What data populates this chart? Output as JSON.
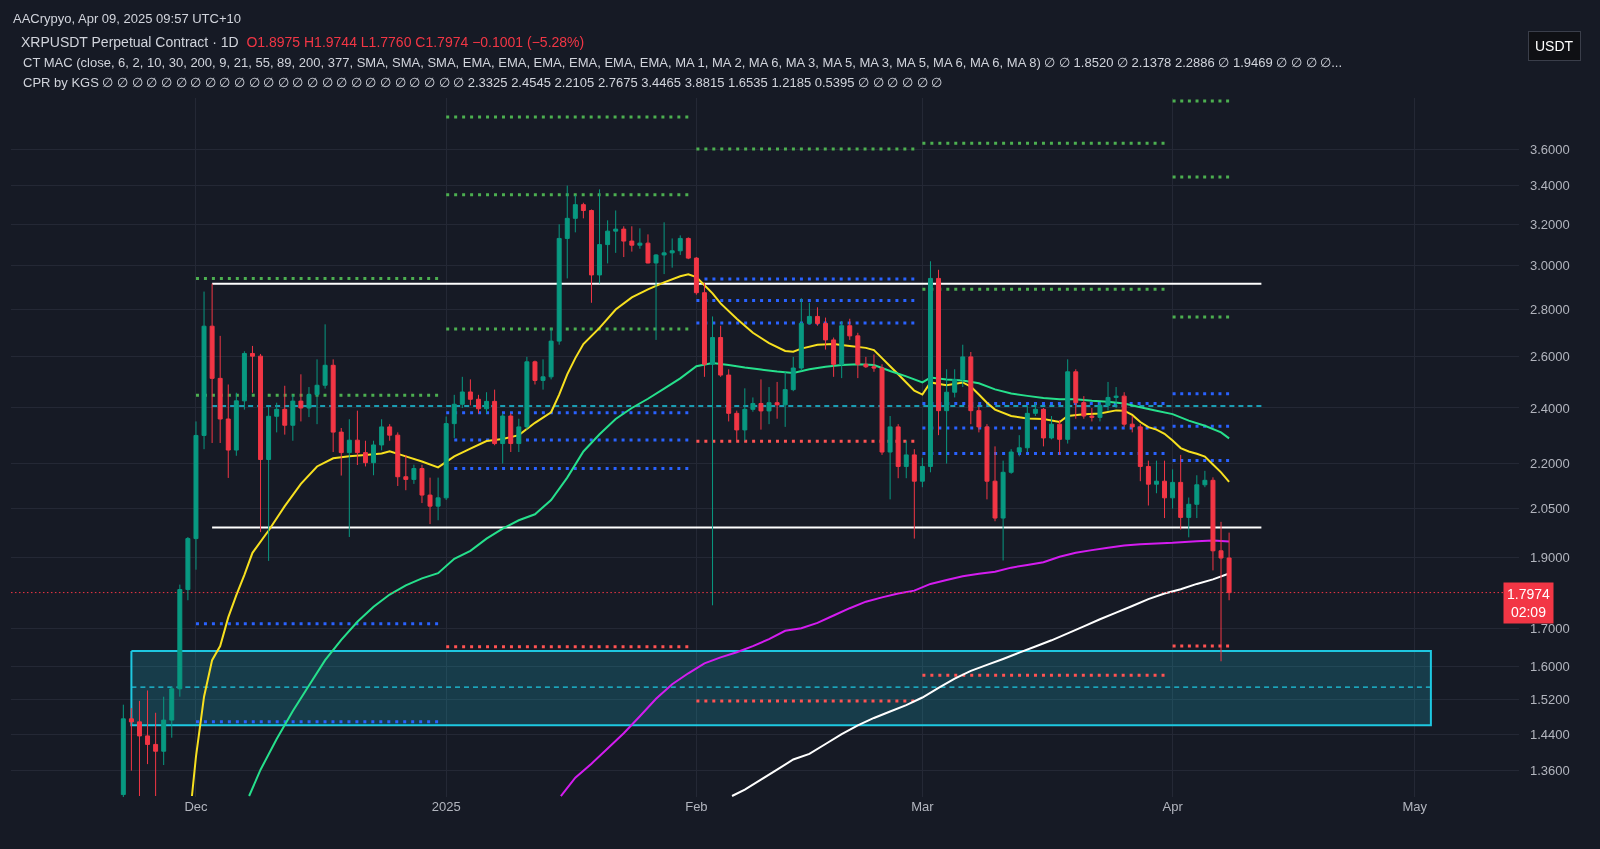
{
  "chart_data": {
    "type": "candlestick",
    "title": "XRPUSDT Perpetual Contract · 1D",
    "subtitle": "O1.8975 H1.9744 L1.7760 C1.7974 −0.1001 (−5.28%)",
    "annotations": [
      "AACrypyo, Apr 09, 2025 09:57 UTC+10",
      "CT MAC (close, 6, 2, 10, 30, 200, 9, 21, 55, 89, 200, 377, SMA, SMA, SMA, EMA, EMA, EMA, EMA, EMA, EMA, MA 1, MA 2, MA 6, MA 3, MA 5, MA 3, MA 5, MA 6, MA 6, MA 8) ∅ ∅ 1.8520 ∅ 2.1378 2.2886 ∅ 1.9469 ∅ ∅ ∅ ∅...",
      "CPR by KGS ∅ ∅ ∅ ∅ ∅ ∅ ∅ ∅ ∅ ∅ ∅ ∅ ∅ ∅ ∅ ∅ ∅ ∅ ∅ ∅ ∅ ∅ ∅ ∅ ∅ 2.3325 2.4545 2.2105 2.7675 3.4465 3.8815 1.6535 1.2185 0.5395 ∅ ∅ ∅ ∅ ∅ ∅",
      "USDT"
    ],
    "x": [
      "2024-11-22",
      "2024-11-23",
      "2024-11-24",
      "2024-11-25",
      "2024-11-26",
      "2024-11-27",
      "2024-11-28",
      "2024-11-29",
      "2024-11-30",
      "2024-12-01",
      "2024-12-02",
      "2024-12-03",
      "2024-12-04",
      "2024-12-05",
      "2024-12-06",
      "2024-12-07",
      "2024-12-08",
      "2024-12-09",
      "2024-12-10",
      "2024-12-11",
      "2024-12-12",
      "2024-12-13",
      "2024-12-14",
      "2024-12-15",
      "2024-12-16",
      "2024-12-17",
      "2024-12-18",
      "2024-12-19",
      "2024-12-20",
      "2024-12-21",
      "2024-12-22",
      "2024-12-23",
      "2024-12-24",
      "2024-12-25",
      "2024-12-26",
      "2024-12-27",
      "2024-12-28",
      "2024-12-29",
      "2024-12-30",
      "2024-12-31",
      "2025-01-01",
      "2025-01-02",
      "2025-01-03",
      "2025-01-04",
      "2025-01-05",
      "2025-01-06",
      "2025-01-07",
      "2025-01-08",
      "2025-01-09",
      "2025-01-10",
      "2025-01-11",
      "2025-01-12",
      "2025-01-13",
      "2025-01-14",
      "2025-01-15",
      "2025-01-16",
      "2025-01-17",
      "2025-01-18",
      "2025-01-19",
      "2025-01-20",
      "2025-01-21",
      "2025-01-22",
      "2025-01-23",
      "2025-01-24",
      "2025-01-25",
      "2025-01-26",
      "2025-01-27",
      "2025-01-28",
      "2025-01-29",
      "2025-01-30",
      "2025-01-31",
      "2025-02-01",
      "2025-02-02",
      "2025-02-03",
      "2025-02-04",
      "2025-02-05",
      "2025-02-06",
      "2025-02-07",
      "2025-02-08",
      "2025-02-09",
      "2025-02-10",
      "2025-02-11",
      "2025-02-12",
      "2025-02-13",
      "2025-02-14",
      "2025-02-15",
      "2025-02-16",
      "2025-02-17",
      "2025-02-18",
      "2025-02-19",
      "2025-02-20",
      "2025-02-21",
      "2025-02-22",
      "2025-02-23",
      "2025-02-24",
      "2025-02-25",
      "2025-02-26",
      "2025-02-27",
      "2025-02-28",
      "2025-03-01",
      "2025-03-02",
      "2025-03-03",
      "2025-03-04",
      "2025-03-05",
      "2025-03-06",
      "2025-03-07",
      "2025-03-08",
      "2025-03-09",
      "2025-03-10",
      "2025-03-11",
      "2025-03-12",
      "2025-03-13",
      "2025-03-14",
      "2025-03-15",
      "2025-03-16",
      "2025-03-17",
      "2025-03-18",
      "2025-03-19",
      "2025-03-20",
      "2025-03-21",
      "2025-03-22",
      "2025-03-23",
      "2025-03-24",
      "2025-03-25",
      "2025-03-26",
      "2025-03-27",
      "2025-03-28",
      "2025-03-29",
      "2025-03-30",
      "2025-03-31",
      "2025-04-01",
      "2025-04-02",
      "2025-04-03",
      "2025-04-04",
      "2025-04-05",
      "2025-04-06",
      "2025-04-07",
      "2025-04-08"
    ],
    "ohlc": [
      [
        1.31,
        1.508,
        1.305,
        1.475
      ],
      [
        1.475,
        1.5,
        1.36,
        1.468
      ],
      [
        1.468,
        1.517,
        1.307,
        1.436
      ],
      [
        1.436,
        1.542,
        1.374,
        1.417
      ],
      [
        1.417,
        1.489,
        1.307,
        1.402
      ],
      [
        1.402,
        1.527,
        1.372,
        1.472
      ],
      [
        1.472,
        1.551,
        1.432,
        1.546
      ],
      [
        1.546,
        1.82,
        1.527,
        1.806
      ],
      [
        1.806,
        1.961,
        1.776,
        1.956
      ],
      [
        1.956,
        2.35,
        1.863,
        2.299
      ],
      [
        2.299,
        2.88,
        2.25,
        2.728
      ],
      [
        2.728,
        2.916,
        2.272,
        2.514
      ],
      [
        2.514,
        2.687,
        2.272,
        2.359
      ],
      [
        2.359,
        2.49,
        2.151,
        2.247
      ],
      [
        2.247,
        2.458,
        2.227,
        2.427
      ],
      [
        2.427,
        2.623,
        2.394,
        2.614
      ],
      [
        2.614,
        2.645,
        2.458,
        2.603
      ],
      [
        2.603,
        2.612,
        1.976,
        2.214
      ],
      [
        2.214,
        2.405,
        1.889,
        2.369
      ],
      [
        2.369,
        2.42,
        2.31,
        2.395
      ],
      [
        2.395,
        2.485,
        2.302,
        2.336
      ],
      [
        2.336,
        2.451,
        2.28,
        2.426
      ],
      [
        2.426,
        2.53,
        2.35,
        2.4
      ],
      [
        2.4,
        2.48,
        2.366,
        2.451
      ],
      [
        2.451,
        2.59,
        2.34,
        2.487
      ],
      [
        2.487,
        2.736,
        2.474,
        2.566
      ],
      [
        2.566,
        2.59,
        2.24,
        2.311
      ],
      [
        2.311,
        2.326,
        2.159,
        2.238
      ],
      [
        2.238,
        2.358,
        1.961,
        2.282
      ],
      [
        2.282,
        2.39,
        2.195,
        2.238
      ],
      [
        2.238,
        2.28,
        2.19,
        2.203
      ],
      [
        2.203,
        2.28,
        2.16,
        2.265
      ],
      [
        2.265,
        2.358,
        2.246,
        2.33
      ],
      [
        2.33,
        2.34,
        2.28,
        2.3
      ],
      [
        2.3,
        2.31,
        2.124,
        2.155
      ],
      [
        2.155,
        2.23,
        2.11,
        2.146
      ],
      [
        2.146,
        2.196,
        2.131,
        2.183
      ],
      [
        2.183,
        2.196,
        2.068,
        2.094
      ],
      [
        2.094,
        2.152,
        2.001,
        2.058
      ],
      [
        2.058,
        2.152,
        2.013,
        2.085
      ],
      [
        2.085,
        2.368,
        2.078,
        2.342
      ],
      [
        2.342,
        2.45,
        2.29,
        2.414
      ],
      [
        2.414,
        2.52,
        2.4,
        2.461
      ],
      [
        2.461,
        2.51,
        2.41,
        2.433
      ],
      [
        2.433,
        2.45,
        2.38,
        2.397
      ],
      [
        2.397,
        2.46,
        2.38,
        2.425
      ],
      [
        2.425,
        2.47,
        2.264,
        2.27
      ],
      [
        2.27,
        2.38,
        2.2,
        2.37
      ],
      [
        2.37,
        2.38,
        2.24,
        2.27
      ],
      [
        2.27,
        2.36,
        2.24,
        2.33
      ],
      [
        2.33,
        2.6,
        2.32,
        2.58
      ],
      [
        2.58,
        2.585,
        2.49,
        2.506
      ],
      [
        2.506,
        2.59,
        2.47,
        2.52
      ],
      [
        2.52,
        2.72,
        2.51,
        2.665
      ],
      [
        2.665,
        3.2,
        2.65,
        3.13
      ],
      [
        3.13,
        3.4,
        2.94,
        3.23
      ],
      [
        3.23,
        3.35,
        3.16,
        3.3
      ],
      [
        3.3,
        3.31,
        3.23,
        3.27
      ],
      [
        3.27,
        3.275,
        2.83,
        2.956
      ],
      [
        2.956,
        3.38,
        2.917,
        3.1
      ],
      [
        3.1,
        3.22,
        3.01,
        3.166
      ],
      [
        3.166,
        3.27,
        3.06,
        3.176
      ],
      [
        3.176,
        3.19,
        3.04,
        3.117
      ],
      [
        3.117,
        3.19,
        3.066,
        3.097
      ],
      [
        3.097,
        3.18,
        3.08,
        3.107
      ],
      [
        3.107,
        3.15,
        3.01,
        3.012
      ],
      [
        3.012,
        3.054,
        2.67,
        3.05
      ],
      [
        3.05,
        3.21,
        2.96,
        3.06
      ],
      [
        3.06,
        3.13,
        2.99,
        3.07
      ],
      [
        3.07,
        3.145,
        3.05,
        3.13
      ],
      [
        3.13,
        3.135,
        3.03,
        3.035
      ],
      [
        3.035,
        3.04,
        2.866,
        2.875
      ],
      [
        2.875,
        2.92,
        2.52,
        2.57
      ],
      [
        2.57,
        2.77,
        1.762,
        2.68
      ],
      [
        2.68,
        2.73,
        2.52,
        2.527
      ],
      [
        2.527,
        2.55,
        2.35,
        2.38
      ],
      [
        2.38,
        2.39,
        2.28,
        2.319
      ],
      [
        2.319,
        2.475,
        2.28,
        2.395
      ],
      [
        2.395,
        2.44,
        2.386,
        2.417
      ],
      [
        2.417,
        2.51,
        2.32,
        2.389
      ],
      [
        2.389,
        2.48,
        2.34,
        2.42
      ],
      [
        2.42,
        2.5,
        2.36,
        2.412
      ],
      [
        2.412,
        2.54,
        2.33,
        2.47
      ],
      [
        2.47,
        2.6,
        2.464,
        2.555
      ],
      [
        2.555,
        2.85,
        2.544,
        2.74
      ],
      [
        2.74,
        2.83,
        2.735,
        2.77
      ],
      [
        2.77,
        2.81,
        2.73,
        2.74
      ],
      [
        2.74,
        2.765,
        2.63,
        2.67
      ],
      [
        2.67,
        2.68,
        2.52,
        2.57
      ],
      [
        2.57,
        2.75,
        2.515,
        2.73
      ],
      [
        2.73,
        2.76,
        2.67,
        2.687
      ],
      [
        2.687,
        2.7,
        2.515,
        2.57
      ],
      [
        2.57,
        2.6,
        2.555,
        2.56
      ],
      [
        2.56,
        2.61,
        2.54,
        2.555
      ],
      [
        2.555,
        2.57,
        2.23,
        2.24
      ],
      [
        2.24,
        2.37,
        2.08,
        2.33
      ],
      [
        2.33,
        2.34,
        2.15,
        2.19
      ],
      [
        2.19,
        2.28,
        2.15,
        2.23
      ],
      [
        2.23,
        2.25,
        1.956,
        2.14
      ],
      [
        2.14,
        2.22,
        2.12,
        2.19
      ],
      [
        2.19,
        3.02,
        2.17,
        2.94
      ],
      [
        2.94,
        2.98,
        2.3,
        2.39
      ],
      [
        2.39,
        2.55,
        2.2,
        2.46
      ],
      [
        2.46,
        2.55,
        2.44,
        2.51
      ],
      [
        2.51,
        2.65,
        2.48,
        2.6
      ],
      [
        2.6,
        2.62,
        2.34,
        2.39
      ],
      [
        2.39,
        2.405,
        2.31,
        2.33
      ],
      [
        2.33,
        2.34,
        2.08,
        2.14
      ],
      [
        2.14,
        2.26,
        2.01,
        2.02
      ],
      [
        2.02,
        2.21,
        1.89,
        2.17
      ],
      [
        2.17,
        2.25,
        2.165,
        2.24
      ],
      [
        2.24,
        2.3,
        2.225,
        2.255
      ],
      [
        2.255,
        2.41,
        2.24,
        2.38
      ],
      [
        2.38,
        2.42,
        2.37,
        2.395
      ],
      [
        2.395,
        2.4,
        2.26,
        2.29
      ],
      [
        2.29,
        2.37,
        2.285,
        2.34
      ],
      [
        2.34,
        2.355,
        2.23,
        2.285
      ],
      [
        2.285,
        2.59,
        2.27,
        2.54
      ],
      [
        2.54,
        2.55,
        2.36,
        2.42
      ],
      [
        2.42,
        2.445,
        2.36,
        2.37
      ],
      [
        2.37,
        2.4,
        2.35,
        2.365
      ],
      [
        2.365,
        2.42,
        2.35,
        2.41
      ],
      [
        2.41,
        2.5,
        2.39,
        2.44
      ],
      [
        2.44,
        2.48,
        2.4,
        2.445
      ],
      [
        2.445,
        2.46,
        2.33,
        2.34
      ],
      [
        2.34,
        2.37,
        2.31,
        2.33
      ],
      [
        2.33,
        2.34,
        2.14,
        2.19
      ],
      [
        2.19,
        2.21,
        2.06,
        2.13
      ],
      [
        2.13,
        2.21,
        2.1,
        2.14
      ],
      [
        2.14,
        2.21,
        2.02,
        2.085
      ],
      [
        2.085,
        2.18,
        2.05,
        2.136
      ],
      [
        2.136,
        2.23,
        1.984,
        2.022
      ],
      [
        2.022,
        2.086,
        1.96,
        2.064
      ],
      [
        2.064,
        2.16,
        2.02,
        2.128
      ],
      [
        2.128,
        2.175,
        2.12,
        2.143
      ],
      [
        2.143,
        2.153,
        1.861,
        1.919
      ],
      [
        1.919,
        2.008,
        1.614,
        1.8975
      ],
      [
        1.8975,
        1.9744,
        1.776,
        1.7974
      ]
    ],
    "series": [
      {
        "type": "line",
        "color": "#1ec8e1",
        "line_style": "dashed",
        "x": [
          "2024-11-23",
          "2025-05-03"
        ],
        "values": [
          1.55,
          1.55
        ],
        "lower": [
          1.46,
          1.46
        ],
        "upper": [
          1.64,
          1.64
        ]
      },
      {
        "type": "line",
        "color": "#4caf50",
        "line_style": "dotted",
        "x": [
          "2024-12-01",
          "2024-12-31"
        ],
        "values": [
          2.94,
          2.94
        ]
      },
      {
        "type": "line",
        "color": "#4caf50",
        "line_style": "dotted",
        "x": [
          "2024-12-01",
          "2024-12-31"
        ],
        "values": [
          2.448,
          2.448
        ]
      },
      {
        "type": "line",
        "color": "#2962ff",
        "line_style": "dotted",
        "x": [
          "2024-12-01",
          "2024-12-31"
        ],
        "values": [
          1.712,
          1.712
        ]
      },
      {
        "type": "line",
        "color": "#2962ff",
        "line_style": "dotted",
        "x": [
          "2024-12-01",
          "2024-12-31"
        ],
        "values": [
          1.468,
          1.468
        ]
      },
      {
        "type": "line",
        "color": "#4caf50",
        "line_style": "dotted",
        "x": [
          "2025-01-01",
          "2025-01-31"
        ],
        "values": [
          3.786,
          3.786
        ]
      },
      {
        "type": "line",
        "color": "#4caf50",
        "line_style": "dotted",
        "x": [
          "2025-01-01",
          "2025-01-31"
        ],
        "values": [
          3.351,
          3.351
        ]
      },
      {
        "type": "line",
        "color": "#4caf50",
        "line_style": "dotted",
        "x": [
          "2025-01-01",
          "2025-01-31"
        ],
        "values": [
          2.716,
          2.716
        ]
      },
      {
        "type": "line",
        "color": "#2962ff",
        "line_style": "dotted",
        "x": [
          "2025-01-01",
          "2025-01-31"
        ],
        "values": [
          2.382,
          2.382
        ]
      },
      {
        "type": "line",
        "color": "#2962ff",
        "line_style": "dotted",
        "x": [
          "2025-01-02",
          "2025-01-31"
        ],
        "values": [
          2.283,
          2.283
        ]
      },
      {
        "type": "line",
        "color": "#2962ff",
        "line_style": "dotted",
        "x": [
          "2025-01-02",
          "2025-01-31"
        ],
        "values": [
          2.183,
          2.183
        ]
      },
      {
        "type": "line",
        "color": "#ff5252",
        "line_style": "dotted",
        "x": [
          "2025-01-01",
          "2025-01-31"
        ],
        "values": [
          1.651,
          1.651
        ]
      },
      {
        "type": "line",
        "color": "#4caf50",
        "line_style": "dotted",
        "x": [
          "2025-02-01",
          "2025-02-28"
        ],
        "values": [
          3.6,
          3.6
        ]
      },
      {
        "type": "line",
        "color": "#2962ff",
        "line_style": "dotted",
        "x": [
          "2025-02-02",
          "2025-02-28"
        ],
        "values": [
          2.937,
          2.937
        ]
      },
      {
        "type": "line",
        "color": "#2962ff",
        "line_style": "dotted",
        "x": [
          "2025-02-01",
          "2025-02-28"
        ],
        "values": [
          2.84,
          2.84
        ]
      },
      {
        "type": "line",
        "color": "#2962ff",
        "line_style": "dotted",
        "x": [
          "2025-02-01",
          "2025-02-28"
        ],
        "values": [
          2.742,
          2.742
        ]
      },
      {
        "type": "line",
        "color": "#ff5252",
        "line_style": "dotted",
        "x": [
          "2025-02-01",
          "2025-02-28"
        ],
        "values": [
          2.278,
          2.278
        ]
      },
      {
        "type": "line",
        "color": "#ff5252",
        "line_style": "dotted",
        "x": [
          "2025-02-01",
          "2025-02-28"
        ],
        "values": [
          1.517,
          1.517
        ]
      },
      {
        "type": "line",
        "color": "#4caf50",
        "line_style": "dotted",
        "x": [
          "2025-03-01",
          "2025-03-31"
        ],
        "values": [
          3.633,
          3.633
        ]
      },
      {
        "type": "line",
        "color": "#4caf50",
        "line_style": "dotted",
        "x": [
          "2025-03-01",
          "2025-03-31"
        ],
        "values": [
          2.89,
          2.89
        ]
      },
      {
        "type": "line",
        "color": "#2962ff",
        "line_style": "dotted",
        "x": [
          "2025-03-01",
          "2025-03-31"
        ],
        "values": [
          2.417,
          2.417
        ]
      },
      {
        "type": "line",
        "color": "#2962ff",
        "line_style": "dotted",
        "x": [
          "2025-03-01",
          "2025-03-31"
        ],
        "values": [
          2.326,
          2.326
        ]
      },
      {
        "type": "line",
        "color": "#2962ff",
        "line_style": "dotted",
        "x": [
          "2025-03-01",
          "2025-03-31"
        ],
        "values": [
          2.235,
          2.235
        ]
      },
      {
        "type": "line",
        "color": "#ff5252",
        "line_style": "dotted",
        "x": [
          "2025-03-01",
          "2025-03-31"
        ],
        "values": [
          1.579,
          1.579
        ]
      },
      {
        "type": "line",
        "color": "#4caf50",
        "line_style": "dotted",
        "x": [
          "2025-04-01",
          "2025-04-08"
        ],
        "values": [
          3.8815,
          3.8815
        ]
      },
      {
        "type": "line",
        "color": "#4caf50",
        "line_style": "dotted",
        "x": [
          "2025-04-01",
          "2025-04-08"
        ],
        "values": [
          3.4465,
          3.4465
        ]
      },
      {
        "type": "line",
        "color": "#4caf50",
        "line_style": "dotted",
        "x": [
          "2025-04-01",
          "2025-04-08"
        ],
        "values": [
          2.7675,
          2.7675
        ]
      },
      {
        "type": "line",
        "color": "#2962ff",
        "line_style": "dotted",
        "x": [
          "2025-04-01",
          "2025-04-08"
        ],
        "values": [
          2.4545,
          2.4545
        ]
      },
      {
        "type": "line",
        "color": "#2962ff",
        "line_style": "dotted",
        "x": [
          "2025-04-01",
          "2025-04-08"
        ],
        "values": [
          2.3325,
          2.3325
        ]
      },
      {
        "type": "line",
        "color": "#2962ff",
        "line_style": "dotted",
        "x": [
          "2025-04-01",
          "2025-04-08"
        ],
        "values": [
          2.2105,
          2.2105
        ]
      },
      {
        "type": "line",
        "color": "#ff5252",
        "line_style": "dotted",
        "x": [
          "2025-04-01",
          "2025-04-08"
        ],
        "values": [
          1.6535,
          1.6535
        ]
      },
      {
        "type": "line",
        "color": "#ffffff",
        "line_style": "solid",
        "x": [
          "2024-12-03",
          "2025-04-12"
        ],
        "values": [
          2.915,
          2.915
        ]
      },
      {
        "type": "line",
        "color": "#1ec8e1",
        "line_style": "dashed",
        "x": [
          "2024-12-03",
          "2025-04-12"
        ],
        "values": [
          2.4075,
          2.4075
        ]
      },
      {
        "type": "line",
        "color": "#ffffff",
        "line_style": "solid",
        "x": [
          "2024-12-03",
          "2025-04-12"
        ],
        "values": [
          1.99,
          1.99
        ]
      },
      {
        "type": "line",
        "color": "#f7e01f",
        "line_style": "solid",
        "x": [
          "2024-11-30T12:00",
          "2024-12-01",
          "2024-12-02",
          "2024-12-03",
          "2024-12-04",
          "2024-12-05",
          "2024-12-06",
          "2024-12-07",
          "2024-12-08",
          "2024-12-10",
          "2024-12-12",
          "2024-12-14",
          "2024-12-16",
          "2024-12-18",
          "2024-12-20",
          "2024-12-22",
          "2024-12-24",
          "2024-12-25",
          "2024-12-27",
          "2024-12-29",
          "2024-12-31",
          "2025-01-02",
          "2025-01-04",
          "2025-01-06",
          "2025-01-08",
          "2025-01-10",
          "2025-01-12",
          "2025-01-14",
          "2025-01-15",
          "2025-01-16",
          "2025-01-17",
          "2025-01-18",
          "2025-01-20",
          "2025-01-22",
          "2025-01-24",
          "2025-01-26",
          "2025-01-28",
          "2025-01-30",
          "2025-01-31",
          "2025-02-01",
          "2025-02-02",
          "2025-02-03",
          "2025-02-04",
          "2025-02-06",
          "2025-02-08",
          "2025-02-10",
          "2025-02-12",
          "2025-02-13",
          "2025-02-14",
          "2025-02-16",
          "2025-02-18",
          "2025-02-20",
          "2025-02-22",
          "2025-02-23",
          "2025-02-24",
          "2025-02-25",
          "2025-02-26",
          "2025-02-27",
          "2025-02-28",
          "2025-03-01",
          "2025-03-02",
          "2025-03-04",
          "2025-03-06",
          "2025-03-07",
          "2025-03-08",
          "2025-03-09",
          "2025-03-10",
          "2025-03-12",
          "2025-03-14",
          "2025-03-16",
          "2025-03-18",
          "2025-03-19",
          "2025-03-21",
          "2025-03-23",
          "2025-03-25",
          "2025-03-26",
          "2025-03-27",
          "2025-03-28",
          "2025-03-29",
          "2025-03-30",
          "2025-03-31",
          "2025-04-01",
          "2025-04-02",
          "2025-04-03",
          "2025-04-04",
          "2025-04-05",
          "2025-04-06",
          "2025-04-07",
          "2025-04-08"
        ],
        "values": [
          1.307,
          1.39,
          1.527,
          1.617,
          1.653,
          1.729,
          1.79,
          1.848,
          1.913,
          1.981,
          2.058,
          2.131,
          2.19,
          2.218,
          2.225,
          2.23,
          2.235,
          2.243,
          2.225,
          2.207,
          2.187,
          2.225,
          2.252,
          2.279,
          2.286,
          2.3,
          2.345,
          2.384,
          2.451,
          2.53,
          2.595,
          2.653,
          2.721,
          2.8,
          2.854,
          2.89,
          2.922,
          2.95,
          2.959,
          2.946,
          2.909,
          2.872,
          2.827,
          2.76,
          2.7,
          2.657,
          2.624,
          2.621,
          2.634,
          2.65,
          2.653,
          2.645,
          2.637,
          2.628,
          2.595,
          2.562,
          2.53,
          2.498,
          2.466,
          2.451,
          2.498,
          2.487,
          2.498,
          2.482,
          2.451,
          2.42,
          2.394,
          2.37,
          2.361,
          2.359,
          2.348,
          2.37,
          2.377,
          2.379,
          2.391,
          2.39,
          2.374,
          2.348,
          2.329,
          2.32,
          2.305,
          2.281,
          2.254,
          2.242,
          2.234,
          2.224,
          2.197,
          2.17,
          2.1378
        ]
      },
      {
        "type": "line",
        "color": "#26e08c",
        "line_style": "solid",
        "x": [
          "2024-12-07T14:00",
          "2024-12-09",
          "2024-12-11",
          "2024-12-13",
          "2024-12-15",
          "2024-12-17",
          "2024-12-19",
          "2024-12-21",
          "2024-12-23",
          "2024-12-25",
          "2024-12-27",
          "2024-12-29",
          "2024-12-31",
          "2025-01-02",
          "2025-01-04",
          "2025-01-06",
          "2025-01-08",
          "2025-01-10",
          "2025-01-12",
          "2025-01-14",
          "2025-01-16",
          "2025-01-18",
          "2025-01-20",
          "2025-01-22",
          "2025-01-24",
          "2025-01-26",
          "2025-01-28",
          "2025-01-30",
          "2025-02-01",
          "2025-02-03",
          "2025-02-05",
          "2025-02-07",
          "2025-02-09",
          "2025-02-11",
          "2025-02-13",
          "2025-02-15",
          "2025-02-17",
          "2025-02-19",
          "2025-02-21",
          "2025-02-23",
          "2025-02-25",
          "2025-02-27",
          "2025-03-01",
          "2025-03-02",
          "2025-03-04",
          "2025-03-06",
          "2025-03-08",
          "2025-03-10",
          "2025-03-12",
          "2025-03-14",
          "2025-03-16",
          "2025-03-18",
          "2025-03-20",
          "2025-03-22",
          "2025-03-24",
          "2025-03-26",
          "2025-03-28",
          "2025-03-30",
          "2025-04-01",
          "2025-04-03",
          "2025-04-05",
          "2025-04-07",
          "2025-04-08"
        ],
        "values": [
          1.307,
          1.362,
          1.429,
          1.493,
          1.554,
          1.617,
          1.669,
          1.717,
          1.758,
          1.792,
          1.818,
          1.838,
          1.853,
          1.895,
          1.919,
          1.956,
          1.987,
          2.013,
          2.032,
          2.078,
          2.152,
          2.242,
          2.303,
          2.359,
          2.4,
          2.435,
          2.474,
          2.514,
          2.562,
          2.575,
          2.567,
          2.557,
          2.549,
          2.541,
          2.535,
          2.55,
          2.56,
          2.567,
          2.57,
          2.567,
          2.543,
          2.522,
          2.498,
          2.517,
          2.51,
          2.506,
          2.495,
          2.471,
          2.455,
          2.446,
          2.438,
          2.433,
          2.433,
          2.427,
          2.424,
          2.417,
          2.403,
          2.39,
          2.377,
          2.353,
          2.334,
          2.31,
          2.2886
        ]
      },
      {
        "type": "line",
        "color": "#d41cf0",
        "line_style": "solid",
        "x": [
          "2025-01-15T05:00",
          "2025-01-17",
          "2025-01-19",
          "2025-01-21",
          "2025-01-23",
          "2025-01-25",
          "2025-01-27",
          "2025-01-29",
          "2025-01-31",
          "2025-02-02",
          "2025-02-04",
          "2025-02-06",
          "2025-02-08",
          "2025-02-10",
          "2025-02-12",
          "2025-02-14",
          "2025-02-16",
          "2025-02-18",
          "2025-02-20",
          "2025-02-22",
          "2025-02-24",
          "2025-02-26",
          "2025-02-28",
          "2025-03-02",
          "2025-03-04",
          "2025-03-06",
          "2025-03-08",
          "2025-03-10",
          "2025-03-12",
          "2025-03-14",
          "2025-03-16",
          "2025-03-18",
          "2025-03-20",
          "2025-03-22",
          "2025-03-24",
          "2025-03-26",
          "2025-03-28",
          "2025-03-30",
          "2025-04-01",
          "2025-04-04",
          "2025-04-06",
          "2025-04-08"
        ],
        "values": [
          1.307,
          1.345,
          1.375,
          1.408,
          1.442,
          1.481,
          1.522,
          1.557,
          1.584,
          1.609,
          1.624,
          1.637,
          1.653,
          1.671,
          1.693,
          1.7,
          1.714,
          1.734,
          1.754,
          1.772,
          1.784,
          1.795,
          1.803,
          1.822,
          1.833,
          1.844,
          1.851,
          1.857,
          1.869,
          1.877,
          1.885,
          1.901,
          1.913,
          1.921,
          1.928,
          1.935,
          1.939,
          1.941,
          1.943,
          1.948,
          1.95,
          1.9469
        ]
      },
      {
        "type": "line",
        "color": "#ffffff",
        "line_style": "solid",
        "x": [
          "2025-02-05T10:00",
          "2025-02-07",
          "2025-02-09",
          "2025-02-11",
          "2025-02-13",
          "2025-02-15",
          "2025-02-17",
          "2025-02-19",
          "2025-02-21",
          "2025-02-23",
          "2025-02-25",
          "2025-02-27",
          "2025-03-01",
          "2025-03-03",
          "2025-03-05",
          "2025-03-07",
          "2025-03-09",
          "2025-03-11",
          "2025-03-13",
          "2025-03-15",
          "2025-03-17",
          "2025-03-19",
          "2025-03-21",
          "2025-03-23",
          "2025-03-25",
          "2025-03-27",
          "2025-03-29",
          "2025-03-31",
          "2025-04-02",
          "2025-04-04",
          "2025-04-06",
          "2025-04-08"
        ],
        "values": [
          1.307,
          1.32,
          1.341,
          1.362,
          1.384,
          1.396,
          1.418,
          1.44,
          1.46,
          1.477,
          1.492,
          1.507,
          1.525,
          1.548,
          1.571,
          1.59,
          1.605,
          1.62,
          1.636,
          1.652,
          1.668,
          1.686,
          1.705,
          1.724,
          1.742,
          1.76,
          1.779,
          1.795,
          1.807,
          1.822,
          1.835,
          1.852
        ]
      }
    ],
    "ref_lines": [
      {
        "axis": "y",
        "value": 1.7974,
        "label": "1.7974\n02:09",
        "color": "#f23645",
        "line_style": "dotted"
      }
    ],
    "xlim": [
      "2024-11-08T02:00",
      "2025-05-13T22:00"
    ],
    "xticks": [
      {
        "value": "2024-12-01",
        "label": "Dec"
      },
      {
        "value": "2025-01-01",
        "label": "2025"
      },
      {
        "value": "2025-02-01",
        "label": "Feb"
      },
      {
        "value": "2025-03-01",
        "label": "Mar"
      },
      {
        "value": "2025-04-01",
        "label": "Apr"
      },
      {
        "value": "2025-05-01",
        "label": "May"
      }
    ],
    "ylim": [
      1.305,
      3.9
    ],
    "yticks": [
      {
        "value": 3.6,
        "label": "3.6000"
      },
      {
        "value": 3.4,
        "label": "3.4000"
      },
      {
        "value": 3.2,
        "label": "3.2000"
      },
      {
        "value": 3.0,
        "label": "3.0000"
      },
      {
        "value": 2.8,
        "label": "2.8000"
      },
      {
        "value": 2.6,
        "label": "2.6000"
      },
      {
        "value": 2.4,
        "label": "2.4000"
      },
      {
        "value": 2.2,
        "label": "2.2000"
      },
      {
        "value": 2.05,
        "label": "2.0500"
      },
      {
        "value": 1.9,
        "label": "1.9000"
      },
      {
        "value": 1.7,
        "label": "1.7000"
      },
      {
        "value": 1.6,
        "label": "1.6000"
      },
      {
        "value": 1.52,
        "label": "1.5200"
      },
      {
        "value": 1.44,
        "label": "1.4400"
      },
      {
        "value": 1.36,
        "label": "1.3600"
      }
    ],
    "log": "y",
    "grid": true
  }
}
